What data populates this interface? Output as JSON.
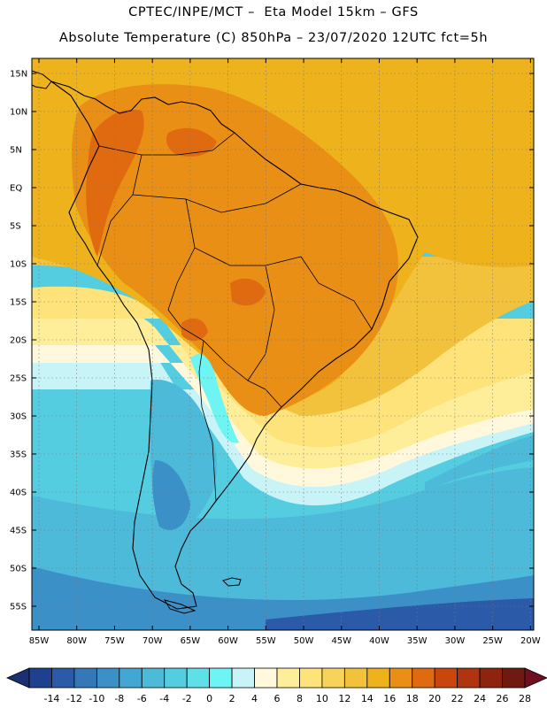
{
  "header": {
    "title_line1": "CPTEC/INPE/MCT –  Eta Model 15km – GFS",
    "title_line2": "Absolute Temperature (C) 850hPa – 23/07/2020 12UTC fct=5h"
  },
  "lat_labels": [
    "15N",
    "10N",
    "5N",
    "EQ",
    "5S",
    "10S",
    "15S",
    "20S",
    "25S",
    "30S",
    "35S",
    "40S",
    "45S",
    "50S",
    "55S"
  ],
  "lon_labels": [
    "85W",
    "80W",
    "75W",
    "70W",
    "65W",
    "60W",
    "55W",
    "50W",
    "45W",
    "40W",
    "35W",
    "30W",
    "25W",
    "20W"
  ],
  "colorbar": {
    "labels": [
      "-14",
      "-12",
      "-10",
      "-8",
      "-6",
      "-4",
      "-2",
      "0",
      "2",
      "4",
      "6",
      "8",
      "10",
      "12",
      "14",
      "16",
      "18",
      "20",
      "22",
      "24",
      "26",
      "28"
    ],
    "colors": [
      "#1f3f8f",
      "#2a5aa8",
      "#3478b8",
      "#3c90c8",
      "#44a6d2",
      "#4cbad8",
      "#55cde0",
      "#5fe0e8",
      "#6ff4f4",
      "#c8f4f8",
      "#fff8dc",
      "#ffee99",
      "#fde37a",
      "#f8d35a",
      "#f2c23c",
      "#eeb21c",
      "#e98f15",
      "#e06a10",
      "#c9470c",
      "#b03410",
      "#8e2410",
      "#6e1a10"
    ],
    "low_color": "#1a3070",
    "high_color": "#6e1020"
  }
}
